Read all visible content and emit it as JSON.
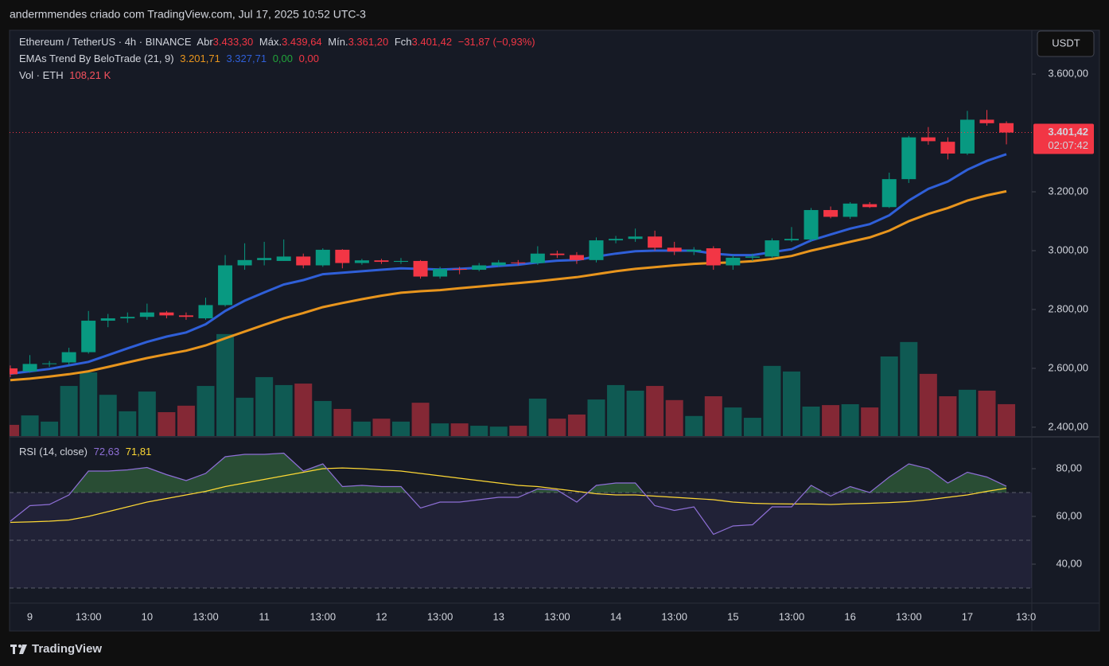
{
  "header": {
    "attribution": "andermmendes criado com TradingView.com, Jul 17, 2025 10:52 UTC-3"
  },
  "chart_data": {
    "type": "candlestick",
    "title": "Ethereum / TetherUS · 4h · BINANCE",
    "legend": {
      "open_label": "Abr",
      "open": "3.433,30",
      "high_label": "Máx.",
      "high": "3.439,64",
      "low_label": "Mín.",
      "low": "3.361,20",
      "close_label": "Fch",
      "close": "3.401,42",
      "change": "−31,87 (−0,93%)"
    },
    "open": [
      2600,
      2590,
      2615,
      2620,
      2655,
      2762,
      2770,
      2775,
      2790,
      2780,
      2770,
      2815,
      2950,
      2968,
      2965,
      2980,
      2950,
      3003,
      2958,
      2967,
      2962,
      2965,
      2912,
      2938,
      2935,
      2950,
      2960,
      2958,
      2990,
      2985,
      2968,
      3035,
      3040,
      3048,
      3010,
      2997,
      3008,
      2950,
      2976,
      2980,
      3035,
      3038,
      3138,
      3115,
      3158,
      3148,
      3243,
      3385,
      3370,
      3330,
      3445,
      3433.3
    ],
    "high": [
      2610,
      2645,
      2625,
      2670,
      2795,
      2785,
      2790,
      2820,
      2795,
      2790,
      2840,
      2985,
      3025,
      3030,
      3038,
      2990,
      3008,
      3005,
      2972,
      2972,
      2975,
      2968,
      2945,
      2945,
      2958,
      2968,
      2968,
      3015,
      3000,
      2995,
      3045,
      3050,
      3075,
      3068,
      3030,
      3012,
      3015,
      2985,
      2990,
      3042,
      3080,
      3145,
      3150,
      3165,
      3165,
      3265,
      3390,
      3420,
      3385,
      3475,
      3478,
      3439.64
    ],
    "low": [
      2570,
      2585,
      2605,
      2610,
      2650,
      2740,
      2755,
      2765,
      2770,
      2765,
      2765,
      2810,
      2935,
      2950,
      2965,
      2940,
      2945,
      2940,
      2952,
      2955,
      2955,
      2905,
      2905,
      2920,
      2930,
      2945,
      2950,
      2952,
      2975,
      2955,
      2960,
      3025,
      3030,
      3000,
      2985,
      2985,
      2935,
      2935,
      2965,
      2975,
      3030,
      3030,
      3110,
      3108,
      3145,
      3145,
      3230,
      3360,
      3310,
      3325,
      3425,
      3361.2
    ],
    "close": [
      2580,
      2615,
      2617,
      2655,
      2762,
      2770,
      2775,
      2790,
      2780,
      2775,
      2815,
      2950,
      2968,
      2975,
      2980,
      2950,
      3003,
      2958,
      2967,
      2962,
      2965,
      2912,
      2938,
      2935,
      2950,
      2960,
      2958,
      2990,
      2985,
      2968,
      3035,
      3040,
      3048,
      3010,
      2997,
      3003,
      2950,
      2976,
      2980,
      3035,
      3040,
      3138,
      3115,
      3160,
      3148,
      3243,
      3385,
      3372,
      3330,
      3445,
      3433,
      3401.42
    ],
    "up_color": "#089981",
    "down_color": "#f23645",
    "ylim": [
      2370,
      3749
    ],
    "yticks": [
      {
        "value": 3600,
        "label": "3.600,00"
      },
      {
        "value": 3200,
        "label": "3.200,00"
      },
      {
        "value": 3000,
        "label": "3.000,00"
      },
      {
        "value": 2800,
        "label": "2.800,00"
      },
      {
        "value": 2600,
        "label": "2.600,00"
      },
      {
        "value": 2400,
        "label": "2.400,00"
      }
    ],
    "last_price": {
      "value": 3401.42,
      "label": "3.401,42",
      "countdown": "02:07:42"
    },
    "currency": "USDT",
    "xticks": [
      "9",
      "13:00",
      "10",
      "13:00",
      "11",
      "13:00",
      "12",
      "13:00",
      "13",
      "13:00",
      "14",
      "13:00",
      "15",
      "13:00",
      "16",
      "13:00",
      "17",
      "13:0"
    ],
    "ema": {
      "title": "EMAs Trend By BeloTrade (21, 9)",
      "slow": {
        "color": "#e8951d",
        "value_label": "3.201,71",
        "values": [
          2560,
          2565,
          2572,
          2580,
          2590,
          2605,
          2620,
          2635,
          2648,
          2660,
          2678,
          2702,
          2725,
          2748,
          2770,
          2788,
          2808,
          2822,
          2835,
          2847,
          2857,
          2862,
          2866,
          2872,
          2878,
          2884,
          2890,
          2896,
          2903,
          2910,
          2920,
          2930,
          2938,
          2944,
          2950,
          2955,
          2958,
          2960,
          2964,
          2972,
          2982,
          3000,
          3015,
          3030,
          3045,
          3068,
          3100,
          3125,
          3145,
          3170,
          3188,
          3201.71
        ]
      },
      "fast": {
        "color": "#2f5fd8",
        "value_label": "3.327,71",
        "values": [
          2582,
          2590,
          2598,
          2610,
          2622,
          2645,
          2668,
          2690,
          2708,
          2722,
          2750,
          2795,
          2830,
          2858,
          2885,
          2900,
          2920,
          2925,
          2930,
          2935,
          2940,
          2938,
          2936,
          2938,
          2942,
          2948,
          2952,
          2960,
          2966,
          2968,
          2980,
          2990,
          2998,
          3000,
          3000,
          3000,
          2990,
          2985,
          2985,
          2995,
          3005,
          3035,
          3055,
          3075,
          3090,
          3120,
          3170,
          3210,
          3235,
          3275,
          3305,
          3327.71
        ]
      },
      "extra": [
        {
          "label": "0,00",
          "color": "#22a33a"
        },
        {
          "label": "0,00",
          "color": "#f23645"
        }
      ]
    },
    "volume": {
      "title": "Vol · ETH",
      "value_label": "108,21 K",
      "values": [
        38,
        70,
        49,
        170,
        216,
        140,
        84,
        151,
        81,
        103,
        170,
        346,
        130,
        200,
        173,
        178,
        119,
        92,
        49,
        59,
        49,
        113,
        43,
        43,
        35,
        32,
        35,
        127,
        59,
        73,
        124,
        173,
        154,
        170,
        122,
        68,
        135,
        97,
        62,
        238,
        219,
        100,
        105,
        108,
        97,
        270,
        319,
        211,
        135,
        157,
        154,
        108.21
      ]
    },
    "rsi": {
      "title": "RSI (14, close)",
      "value_label": "72,63",
      "ma_label": "71,81",
      "color": "#8e6fd6",
      "ma_color": "#fdd835",
      "ylim": [
        24,
        93
      ],
      "yticks": [
        {
          "value": 80,
          "label": "80,00"
        },
        {
          "value": 60,
          "label": "60,00"
        },
        {
          "value": 40,
          "label": "40,00"
        }
      ],
      "bands": [
        70,
        50,
        30
      ],
      "values": [
        58,
        64.5,
        65,
        69,
        79,
        79,
        79.5,
        80.5,
        77.5,
        75,
        78,
        85,
        86,
        86,
        86.5,
        79,
        82,
        72.5,
        73,
        72.5,
        72.5,
        63.5,
        66,
        66,
        67,
        68,
        68,
        71.5,
        71,
        66,
        73,
        74,
        74,
        64.5,
        62.5,
        64,
        52.5,
        56,
        56.5,
        64,
        64,
        73,
        68.5,
        72.5,
        70,
        76.5,
        82,
        80,
        74,
        78.5,
        76.5,
        72.63
      ],
      "ma_values": [
        57.5,
        57.7,
        58,
        58.5,
        60,
        62,
        64,
        66,
        67.5,
        69,
        70.5,
        72.5,
        74,
        75.5,
        77,
        78.5,
        80,
        80.3,
        80,
        79.5,
        79,
        78,
        77,
        76,
        75,
        74,
        73,
        72.5,
        71.5,
        70.5,
        69.5,
        69,
        69,
        68.5,
        68,
        67.5,
        67,
        66,
        65.5,
        65.3,
        65.2,
        65.2,
        65,
        65.3,
        65.5,
        65.8,
        66.2,
        67,
        68,
        69,
        70.5,
        71.81
      ]
    }
  },
  "footer": {
    "brand": "TradingView"
  }
}
